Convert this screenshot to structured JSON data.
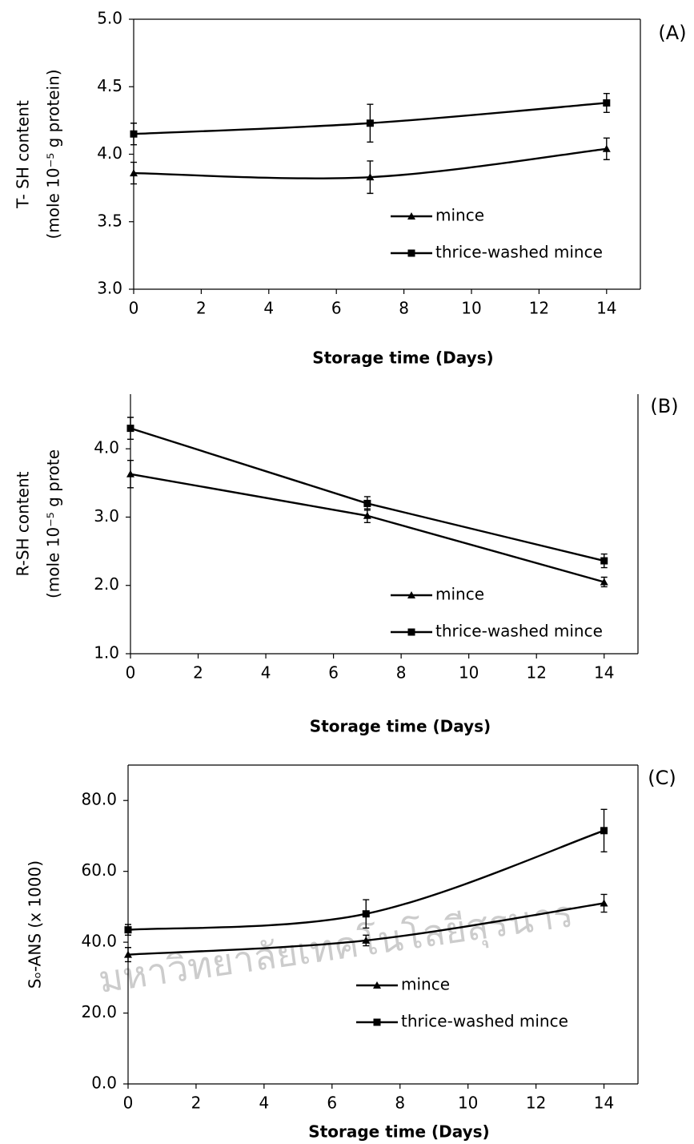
{
  "chart_data": [
    {
      "type": "line",
      "title": "(A)",
      "xlabel": "Storage time (Days)",
      "ylabel": [
        "T- SH content",
        "(mole 10⁻⁵ g protein)"
      ],
      "x": [
        0,
        7,
        14
      ],
      "xlim": [
        0,
        15
      ],
      "xticks": [
        0,
        2,
        4,
        6,
        8,
        10,
        12,
        14
      ],
      "ylim": [
        3,
        5
      ],
      "yticks": [
        {
          "value": 3,
          "label": "3.0"
        },
        {
          "value": 3.5,
          "label": "3.5"
        },
        {
          "value": 4,
          "label": "4.0"
        },
        {
          "value": 4.5,
          "label": "4.5"
        },
        {
          "value": 5,
          "label": "5.0"
        }
      ],
      "smooth": true,
      "series": [
        {
          "name": "mince",
          "color": "#000000",
          "marker": "triangle",
          "values": [
            3.86,
            3.83,
            4.04
          ],
          "errors": [
            0.08,
            0.12,
            0.08
          ]
        },
        {
          "name": "thrice-washed mince",
          "color": "#000000",
          "marker": "square",
          "values": [
            4.15,
            4.23,
            4.38
          ],
          "errors": [
            0.08,
            0.14,
            0.07
          ]
        }
      ]
    },
    {
      "type": "line",
      "title": "(B)",
      "xlabel": "Storage time (Days)",
      "ylabel": [
        "R-SH content",
        "(mole 10⁻⁵ g prote"
      ],
      "x": [
        0,
        7,
        14
      ],
      "xlim": [
        0,
        15
      ],
      "xticks": [
        0,
        2,
        4,
        6,
        8,
        10,
        12,
        14
      ],
      "ylim": [
        1,
        4.8
      ],
      "yticks": [
        {
          "value": 1,
          "label": "1.0"
        },
        {
          "value": 2,
          "label": "2.0"
        },
        {
          "value": 3,
          "label": "3.0"
        },
        {
          "value": 4,
          "label": "4.0"
        }
      ],
      "smooth": false,
      "series": [
        {
          "name": "mince",
          "color": "#000000",
          "marker": "triangle",
          "values": [
            3.63,
            3.02,
            2.05
          ],
          "errors": [
            0.2,
            0.1,
            0.07
          ]
        },
        {
          "name": "thrice-washed mince",
          "color": "#000000",
          "marker": "square",
          "values": [
            4.3,
            3.2,
            2.36
          ],
          "errors": [
            0.16,
            0.1,
            0.1
          ]
        }
      ]
    },
    {
      "type": "line",
      "title": "(C)",
      "xlabel": "Storage time (Days)",
      "ylabel": [
        "Sₒ-ANS (x 1000)"
      ],
      "x": [
        0,
        7,
        14
      ],
      "xlim": [
        0,
        15
      ],
      "xticks": [
        0,
        2,
        4,
        6,
        8,
        10,
        12,
        14
      ],
      "ylim": [
        0,
        90
      ],
      "yticks": [
        {
          "value": 0,
          "label": "0.0"
        },
        {
          "value": 20,
          "label": "20.0"
        },
        {
          "value": 40,
          "label": "40.0"
        },
        {
          "value": 60,
          "label": "60.0"
        },
        {
          "value": 80,
          "label": "80.0"
        }
      ],
      "smooth": true,
      "series": [
        {
          "name": "mince",
          "color": "#000000",
          "marker": "triangle",
          "values": [
            36.5,
            40.5,
            51
          ],
          "errors": [
            2,
            1.5,
            2.5
          ]
        },
        {
          "name": "thrice-washed mince",
          "color": "#000000",
          "marker": "square",
          "values": [
            43.5,
            48,
            71.5
          ],
          "errors": [
            1.5,
            4,
            6
          ]
        }
      ]
    }
  ],
  "watermark": "มหาวิทยาลัยเทคโนโลยีสุรนาร"
}
